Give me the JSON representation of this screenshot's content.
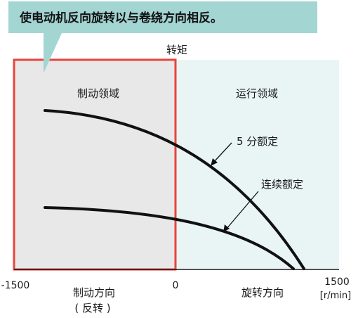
{
  "callout": {
    "text": "使电动机反向旋转以与卷绕方向相反。",
    "fill_color": "#a3d5d3"
  },
  "axis": {
    "y_label": "转矩",
    "x_left": "-1500",
    "x_zero": "0",
    "x_right": "1500",
    "x_unit": "[r/min]"
  },
  "regions": {
    "braking": {
      "label": "制动领域",
      "fill_color": "#e8e8e8",
      "border_color": "#e8453c"
    },
    "running": {
      "label": "运行领域",
      "fill_color": "#e9f5f5"
    }
  },
  "directions": {
    "braking_line1": "制动方向",
    "braking_line2": "( 反转 )",
    "rotation": "旋转方向"
  },
  "curves": {
    "five_min": "5 分额定",
    "continuous": "连续额定"
  }
}
